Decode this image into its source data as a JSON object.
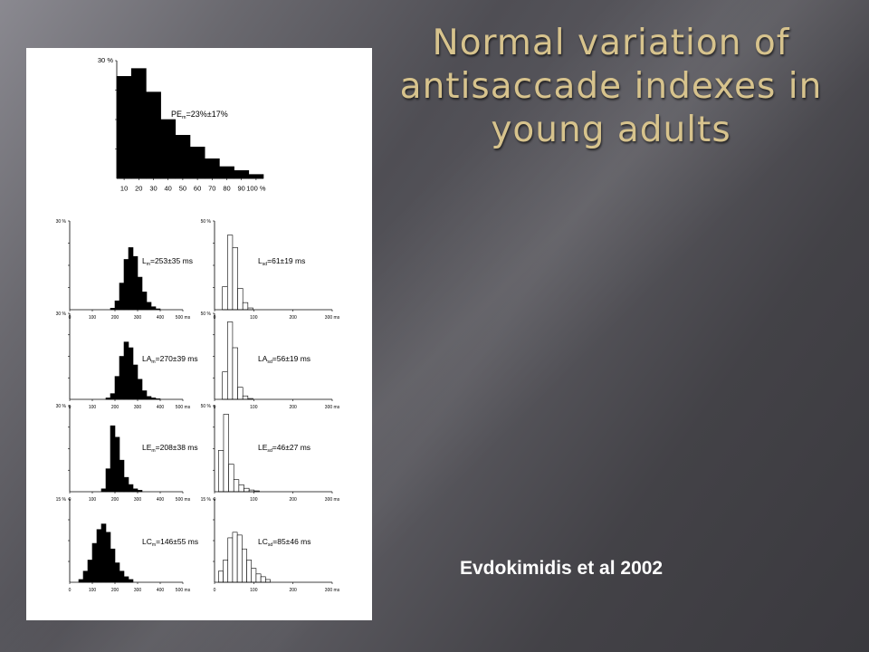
{
  "slide": {
    "title": "Normal variation of antisaccade indexes in young adults",
    "citation": "Evdokimidis et al 2002"
  },
  "chart_data": [
    {
      "id": "pe",
      "type": "bar",
      "fill": "black",
      "annotation": "PE",
      "annotation_sub": "m",
      "annotation_rest": "=23%±17%",
      "y_tick_label": "30 %",
      "ymax": 30,
      "x_tick_labels": [
        "10",
        "20",
        "30",
        "40",
        "50",
        "60",
        "70",
        "80",
        "90",
        "100 %"
      ],
      "values": [
        26,
        28,
        22,
        15,
        11,
        8,
        5,
        3,
        2,
        1
      ]
    },
    {
      "id": "lm",
      "type": "bar",
      "fill": "black",
      "annotation": "L",
      "annotation_sub": "m",
      "annotation_rest": "=253±35 ms",
      "y_tick_label": "30 %",
      "ymax": 30,
      "xmax": 500,
      "x_tick_labels": [
        "0",
        "100",
        "200",
        "300",
        "400",
        "500 ms"
      ],
      "bin_start": 180,
      "bin_width": 20,
      "values": [
        0.5,
        3,
        9,
        17,
        21,
        18,
        11,
        6,
        2.5,
        1,
        0.3
      ]
    },
    {
      "id": "lsd",
      "type": "bar",
      "fill": "white",
      "annotation": "L",
      "annotation_sub": "sd",
      "annotation_rest": "=61±19 ms",
      "y_tick_label": "50 %",
      "ymax": 50,
      "xmax": 300,
      "x_tick_labels": [
        "0",
        "100",
        "200",
        "300 ms"
      ],
      "bin_start": 20,
      "bin_width": 13,
      "values": [
        13,
        42,
        35,
        12,
        4,
        1
      ]
    },
    {
      "id": "lam",
      "type": "bar",
      "fill": "black",
      "annotation": "LA",
      "annotation_sub": "m",
      "annotation_rest": "=270±39 ms",
      "y_tick_label": "30 %",
      "ymax": 30,
      "xmax": 500,
      "x_tick_labels": [
        "0",
        "100",
        "200",
        "300",
        "400",
        "500 ms"
      ],
      "bin_start": 160,
      "bin_width": 20,
      "values": [
        0.5,
        2,
        8,
        15,
        20,
        18,
        12,
        7,
        3,
        1,
        0.5,
        0.2
      ]
    },
    {
      "id": "lasd",
      "type": "bar",
      "fill": "white",
      "annotation": "LA",
      "annotation_sub": "sd",
      "annotation_rest": "=56±19 ms",
      "y_tick_label": "50 %",
      "ymax": 50,
      "xmax": 300,
      "x_tick_labels": [
        "0",
        "100",
        "200",
        "300 ms"
      ],
      "bin_start": 20,
      "bin_width": 13,
      "values": [
        16,
        45,
        30,
        7,
        2,
        0.5
      ]
    },
    {
      "id": "lem",
      "type": "bar",
      "fill": "black",
      "annotation": "LE",
      "annotation_sub": "m",
      "annotation_rest": "=208±38 ms",
      "y_tick_label": "30 %",
      "ymax": 30,
      "xmax": 500,
      "x_tick_labels": [
        "0",
        "100",
        "200",
        "300",
        "400",
        "500 ms"
      ],
      "bin_start": 140,
      "bin_width": 20,
      "values": [
        1,
        8,
        23,
        19,
        11,
        5,
        2.5,
        1,
        0.5
      ]
    },
    {
      "id": "lesd",
      "type": "bar",
      "fill": "white",
      "annotation": "LE",
      "annotation_sub": "sd",
      "annotation_rest": "=46±27 ms",
      "y_tick_label": "50 %",
      "ymax": 50,
      "xmax": 300,
      "x_tick_labels": [
        "0",
        "100",
        "200",
        "300 ms"
      ],
      "bin_start": 10,
      "bin_width": 13,
      "values": [
        24,
        45,
        16,
        7,
        4,
        2,
        1,
        0.5
      ]
    },
    {
      "id": "lcm",
      "type": "bar",
      "fill": "black",
      "annotation": "LC",
      "annotation_sub": "m",
      "annotation_rest": "=146±55 ms",
      "y_tick_label": "15 %",
      "ymax": 15,
      "xmax": 500,
      "x_tick_labels": [
        "0",
        "100",
        "200",
        "300",
        "400",
        "500 ms"
      ],
      "bin_start": 40,
      "bin_width": 20,
      "values": [
        0.5,
        2,
        4,
        7,
        9.5,
        10.5,
        9,
        6,
        3.5,
        2,
        1,
        0.5
      ]
    },
    {
      "id": "lcsd",
      "type": "bar",
      "fill": "white",
      "annotation": "LC",
      "annotation_sub": "sd",
      "annotation_rest": "=85±46 ms",
      "y_tick_label": "15 %",
      "ymax": 15,
      "xmax": 300,
      "x_tick_labels": [
        "0",
        "100",
        "200",
        "300 ms"
      ],
      "bin_start": 10,
      "bin_width": 12,
      "values": [
        2,
        4,
        8,
        9,
        8.5,
        6,
        4,
        2.5,
        1.5,
        1,
        0.5
      ]
    }
  ]
}
